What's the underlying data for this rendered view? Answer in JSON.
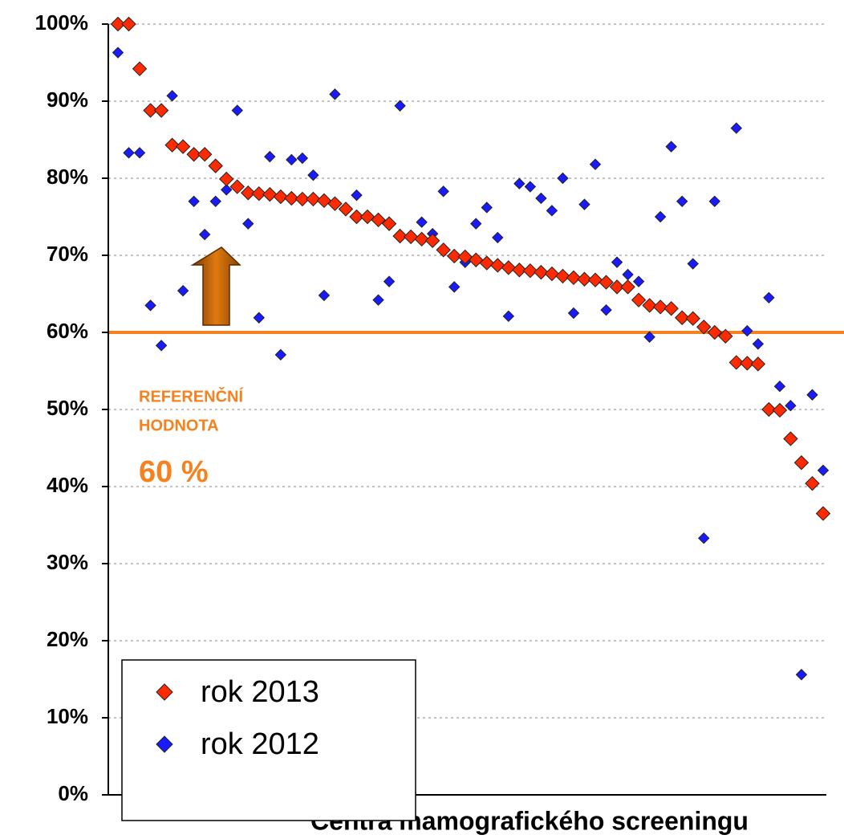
{
  "chart_data": {
    "type": "scatter",
    "x_label": "Centra mamografického screeningu",
    "categories": [
      null,
      null,
      null,
      null,
      null,
      null,
      null,
      null,
      null,
      null,
      null,
      null,
      null,
      null,
      null,
      null,
      null,
      null,
      null,
      null,
      null,
      null,
      null,
      null,
      null,
      null,
      null,
      null,
      null,
      null,
      null,
      null,
      null,
      null,
      null,
      null,
      null,
      null,
      null,
      null,
      null,
      null,
      null,
      null,
      null,
      null,
      null,
      null,
      null,
      null,
      null,
      null,
      null,
      null,
      null,
      null,
      null,
      null,
      null,
      null,
      null,
      null,
      null,
      null,
      null,
      null
    ],
    "series": [
      {
        "name": "rok 2013",
        "color": "#ff2a00",
        "values": [
          100,
          100,
          94.2,
          88.8,
          88.8,
          84.3,
          84.1,
          83.1,
          83.1,
          81.6,
          79.9,
          78.9,
          78.1,
          78,
          77.9,
          77.6,
          77.4,
          77.3,
          77.3,
          77.1,
          76.7,
          76,
          75,
          75,
          74.6,
          74.1,
          72.5,
          72.4,
          72.1,
          71.9,
          70.7,
          69.9,
          69.8,
          69.4,
          69,
          68.7,
          68.4,
          68.1,
          68,
          67.8,
          67.6,
          67.3,
          67.1,
          66.9,
          66.8,
          66.5,
          65.9,
          65.9,
          64.2,
          63.5,
          63.3,
          63.1,
          61.9,
          61.8,
          60.7,
          60,
          59.5,
          56.1,
          56,
          55.9,
          50,
          49.9,
          46.2,
          43.1,
          40.4,
          36.5
        ]
      },
      {
        "name": "rok 2012",
        "color": "#1a1aff",
        "values": [
          96.3,
          83.3,
          83.3,
          63.5,
          58.3,
          90.7,
          65.4,
          77,
          72.7,
          77,
          78.5,
          88.8,
          74.1,
          61.9,
          82.8,
          57.1,
          82.4,
          82.6,
          80.4,
          64.8,
          90.9,
          null,
          77.8,
          null,
          64.2,
          66.6,
          89.4,
          null,
          74.3,
          72.8,
          78.3,
          65.9,
          69.1,
          74.1,
          76.2,
          72.3,
          62.1,
          79.3,
          78.9,
          77.4,
          75.8,
          80,
          62.5,
          76.6,
          81.8,
          62.9,
          69.1,
          67.5,
          66.6,
          59.4,
          75,
          84.1,
          77,
          68.9,
          33.3,
          77,
          null,
          86.5,
          60.2,
          58.5,
          64.5,
          53,
          50.5,
          15.6,
          51.9,
          42.1
        ]
      }
    ],
    "ylim": [
      0,
      100
    ],
    "yticks": [
      {
        "value": 0,
        "label": "0%"
      },
      {
        "value": 10,
        "label": "10%"
      },
      {
        "value": 20,
        "label": "20%"
      },
      {
        "value": 30,
        "label": "30%"
      },
      {
        "value": 40,
        "label": "40%"
      },
      {
        "value": 50,
        "label": "50%"
      },
      {
        "value": 60,
        "label": "60%"
      },
      {
        "value": 70,
        "label": "70%"
      },
      {
        "value": 80,
        "label": "80%"
      },
      {
        "value": 90,
        "label": "90%"
      },
      {
        "value": 100,
        "label": "100%"
      }
    ],
    "grid": true,
    "reference_line": {
      "value": 60,
      "color": "#f58220"
    },
    "annotations": [
      "REFERENČNÍ",
      "HODNOTA",
      "60 %"
    ],
    "legend": "lower left"
  }
}
